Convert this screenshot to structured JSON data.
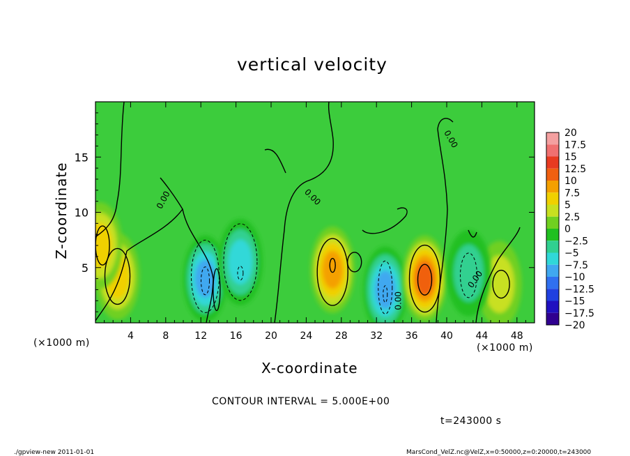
{
  "title": "vertical velocity",
  "contour_interval_text": "CONTOUR INTERVAL = 5.000E+00",
  "time_text": "t=243000 s",
  "footer_left": "./gpview-new  2011-01-01",
  "footer_right": "MarsCond_VelZ.nc@VelZ,x=0:50000,z=0:20000,t=243000",
  "x_unit_left": "(×1000 m)",
  "x_unit_right": "(×1000 m)",
  "chart_data": {
    "type": "heatmap",
    "title": "vertical velocity",
    "xlabel": "X-coordinate",
    "ylabel": "Z-coordinate",
    "x_unit": "×1000 m",
    "xlim": [
      0,
      50
    ],
    "ylim": [
      0,
      20
    ],
    "x_ticks": [
      4,
      8,
      12,
      16,
      20,
      24,
      28,
      32,
      36,
      40,
      44,
      48
    ],
    "y_ticks": [
      5,
      10,
      15
    ],
    "contour_interval": 5.0,
    "contour_labels": [
      "0.00",
      "0.00",
      "0.00",
      "0.00",
      "0.00"
    ],
    "colorbar": {
      "levels": [
        "20",
        "17.5",
        "15",
        "12.5",
        "10",
        "7.5",
        "5",
        "2.5",
        "0",
        "−2.5",
        "−5",
        "−7.5",
        "−10",
        "−12.5",
        "−15",
        "−17.5",
        "−20"
      ],
      "colors": [
        "#f4a0a0",
        "#f07070",
        "#e83a20",
        "#f06010",
        "#f4a000",
        "#f0d000",
        "#c8e020",
        "#70d020",
        "#20c020",
        "#30d090",
        "#30d8d8",
        "#40a8f0",
        "#3070f0",
        "#2040e0",
        "#2010c0",
        "#300090"
      ]
    },
    "features": [
      {
        "kind": "updraft",
        "x": 2.5,
        "z": 4.2,
        "peak": 7.5
      },
      {
        "kind": "updraft",
        "x": 0.5,
        "z": 7.0,
        "peak": 7.5
      },
      {
        "kind": "downdraft",
        "x": 12.5,
        "z": 4.0,
        "peak": -10
      },
      {
        "kind": "downdraft",
        "x": 16.5,
        "z": 5.5,
        "peak": -7.5
      },
      {
        "kind": "updraft",
        "x": 27.0,
        "z": 4.8,
        "peak": 10
      },
      {
        "kind": "downdraft",
        "x": 33.0,
        "z": 3.0,
        "peak": -10
      },
      {
        "kind": "updraft",
        "x": 37.5,
        "z": 4.0,
        "peak": 12.5
      },
      {
        "kind": "updraft",
        "x": 46.0,
        "z": 3.5,
        "peak": 5
      },
      {
        "kind": "downdraft",
        "x": 42.5,
        "z": 4.5,
        "peak": -5
      }
    ]
  }
}
